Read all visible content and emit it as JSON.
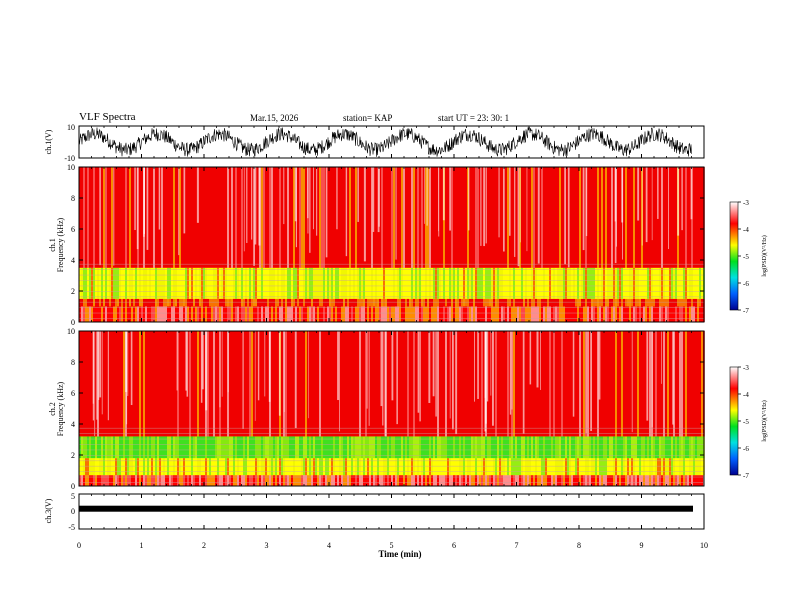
{
  "header": {
    "title": "VLF Spectra",
    "date": "Mar.15, 2026",
    "station": "station= KAP",
    "start": "start  UT =   23: 30: 1"
  },
  "colorbar": {
    "label": "log(PSD)(V²/Hz)",
    "ticks": [
      "-3",
      "-4",
      "-5",
      "-6",
      "-7"
    ],
    "range": [
      -7,
      -3
    ],
    "colors": [
      "#000090",
      "#0060ff",
      "#00e0e0",
      "#00e020",
      "#ffff00",
      "#ff0000",
      "#ffffff"
    ]
  },
  "chart_data": [
    {
      "type": "line",
      "name": "ch.1 waveform",
      "ylabel": "ch.1(V)",
      "y_ticks": [
        "10",
        "-10"
      ],
      "ylim": [
        -10,
        10
      ],
      "xlim": [
        0,
        10
      ],
      "data_end_min": 9.8
    },
    {
      "type": "heatmap",
      "name": "ch.1 spectrogram",
      "ylabel": "ch.1\nFrequency (kHz)",
      "ylim": [
        0,
        10
      ],
      "y_ticks": [
        "0",
        "2",
        "4",
        "6",
        "8",
        "10"
      ],
      "bands": [
        {
          "from_khz": 0.0,
          "to_khz": 1.0,
          "level": "mixed"
        },
        {
          "from_khz": 1.0,
          "to_khz": 1.5,
          "level": "red-yellow"
        },
        {
          "from_khz": 1.5,
          "to_khz": 3.5,
          "level": "green-yellow"
        },
        {
          "from_khz": 3.5,
          "to_khz": 10.0,
          "level": "red"
        }
      ]
    },
    {
      "type": "heatmap",
      "name": "ch.2 spectrogram",
      "ylabel": "ch.2\nFrequency (kHz)",
      "ylim": [
        0,
        10
      ],
      "y_ticks": [
        "0",
        "2",
        "4",
        "6",
        "8",
        "10"
      ],
      "bands": [
        {
          "from_khz": 0.0,
          "to_khz": 0.7,
          "level": "mixed"
        },
        {
          "from_khz": 0.7,
          "to_khz": 1.8,
          "level": "green-yellow"
        },
        {
          "from_khz": 1.8,
          "to_khz": 3.2,
          "level": "green"
        },
        {
          "from_khz": 3.2,
          "to_khz": 10.0,
          "level": "red"
        }
      ]
    },
    {
      "type": "line",
      "name": "ch.3 waveform",
      "ylabel": "ch.3(V)",
      "y_ticks": [
        "5",
        "0",
        "-5"
      ],
      "ylim": [
        -5,
        5
      ],
      "level_v": 0.8,
      "xlim": [
        0,
        10
      ]
    }
  ],
  "xaxis": {
    "label": "Time  (min)",
    "ticks": [
      "0",
      "1",
      "2",
      "3",
      "4",
      "5",
      "6",
      "7",
      "8",
      "9",
      "10"
    ],
    "range": [
      0,
      10
    ]
  }
}
